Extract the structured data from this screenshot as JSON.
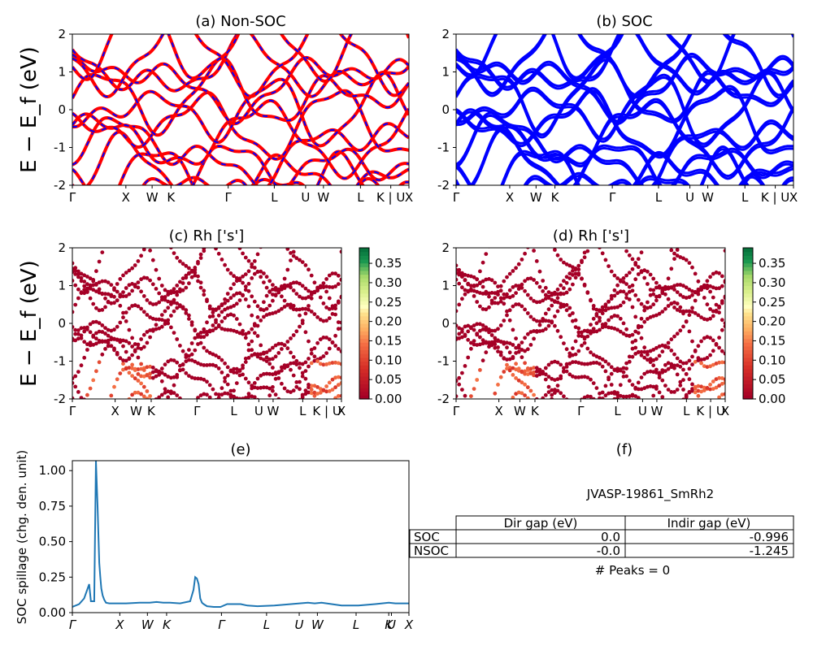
{
  "chart_data": [
    {
      "panel": "a",
      "type": "line",
      "title": "(a) Non-SOC",
      "ylabel": "E − E_f (eV)",
      "ylim": [
        -2,
        2
      ],
      "yticks": [
        -2,
        -1,
        0,
        1,
        2
      ],
      "kpath": [
        {
          "label": "Γ",
          "pos": 0.0
        },
        {
          "label": "X",
          "pos": 0.159
        },
        {
          "label": "W",
          "pos": 0.237
        },
        {
          "label": "K",
          "pos": 0.293
        },
        {
          "label": "Γ",
          "pos": 0.463
        },
        {
          "label": "L",
          "pos": 0.6
        },
        {
          "label": "U",
          "pos": 0.693
        },
        {
          "label": "W",
          "pos": 0.746
        },
        {
          "label": "L",
          "pos": 0.856
        },
        {
          "label": "K | U",
          "pos": 0.946
        },
        {
          "label": "X",
          "pos": 1.0
        }
      ],
      "line_colors": [
        "#ff0000",
        "#0000ff"
      ]
    },
    {
      "panel": "b",
      "type": "line",
      "title": "(b) SOC",
      "ylim": [
        -2,
        2
      ],
      "yticks": [
        -2,
        -1,
        0,
        1,
        2
      ],
      "kpath": [
        {
          "label": "Γ",
          "pos": 0.0
        },
        {
          "label": "X",
          "pos": 0.159
        },
        {
          "label": "W",
          "pos": 0.237
        },
        {
          "label": "K",
          "pos": 0.293
        },
        {
          "label": "Γ",
          "pos": 0.463
        },
        {
          "label": "L",
          "pos": 0.6
        },
        {
          "label": "U",
          "pos": 0.693
        },
        {
          "label": "W",
          "pos": 0.746
        },
        {
          "label": "L",
          "pos": 0.856
        },
        {
          "label": "K | U",
          "pos": 0.946
        },
        {
          "label": "X",
          "pos": 1.0
        }
      ],
      "line_colors": [
        "#0000ff"
      ]
    },
    {
      "panel": "c",
      "type": "scatter",
      "title": "(c)  Rh ['s']",
      "ylabel": "E − E_f (eV)",
      "ylim": [
        -2,
        2
      ],
      "yticks": [
        -2,
        -1,
        0,
        1,
        2
      ],
      "kpath": [
        {
          "label": "Γ",
          "pos": 0.0
        },
        {
          "label": "X",
          "pos": 0.159
        },
        {
          "label": "W",
          "pos": 0.237
        },
        {
          "label": "K",
          "pos": 0.293
        },
        {
          "label": "Γ",
          "pos": 0.463
        },
        {
          "label": "L",
          "pos": 0.6
        },
        {
          "label": "U",
          "pos": 0.693
        },
        {
          "label": "W",
          "pos": 0.746
        },
        {
          "label": "L",
          "pos": 0.856
        },
        {
          "label": "K | U",
          "pos": 0.946
        },
        {
          "label": "X",
          "pos": 1.0
        }
      ],
      "colorbar": {
        "min": 0.0,
        "max": 0.39,
        "ticks": [
          "0.00",
          "0.05",
          "0.10",
          "0.15",
          "0.20",
          "0.25",
          "0.30",
          "0.35"
        ],
        "colormap": "RdYlGn"
      }
    },
    {
      "panel": "d",
      "type": "scatter",
      "title": "(d) Rh ['s']",
      "ylim": [
        -2,
        2
      ],
      "yticks": [
        -2,
        -1,
        0,
        1,
        2
      ],
      "kpath": [
        {
          "label": "Γ",
          "pos": 0.0
        },
        {
          "label": "X",
          "pos": 0.159
        },
        {
          "label": "W",
          "pos": 0.237
        },
        {
          "label": "K",
          "pos": 0.293
        },
        {
          "label": "Γ",
          "pos": 0.463
        },
        {
          "label": "L",
          "pos": 0.6
        },
        {
          "label": "U",
          "pos": 0.693
        },
        {
          "label": "W",
          "pos": 0.746
        },
        {
          "label": "L",
          "pos": 0.856
        },
        {
          "label": "K | U",
          "pos": 0.946
        },
        {
          "label": "X",
          "pos": 1.0
        }
      ],
      "colorbar": {
        "min": 0.0,
        "max": 0.39,
        "ticks": [
          "0.00",
          "0.05",
          "0.10",
          "0.15",
          "0.20",
          "0.25",
          "0.30",
          "0.35"
        ],
        "colormap": "RdYlGn"
      }
    },
    {
      "panel": "e",
      "type": "line",
      "title": "(e)",
      "ylabel": "SOC spillage (chg. den. unit)",
      "ylim": [
        0,
        1.07
      ],
      "yticks": [
        "0.00",
        "0.25",
        "0.50",
        "0.75",
        "1.00"
      ],
      "xticks": [
        {
          "label": "Γ",
          "pos": 0.0
        },
        {
          "label": "X",
          "pos": 0.141
        },
        {
          "label": "W",
          "pos": 0.223
        },
        {
          "label": "K",
          "pos": 0.28
        },
        {
          "label": "Γ",
          "pos": 0.443
        },
        {
          "label": "L",
          "pos": 0.577
        },
        {
          "label": "U",
          "pos": 0.674
        },
        {
          "label": "W",
          "pos": 0.728
        },
        {
          "label": "L",
          "pos": 0.843
        },
        {
          "label": "K",
          "pos": 0.94
        },
        {
          "label": "U",
          "pos": 0.948
        },
        {
          "label": "X",
          "pos": 1.0
        }
      ],
      "line_color": "#1f77b4",
      "x": [
        0.0,
        0.02,
        0.035,
        0.05,
        0.055,
        0.06,
        0.065,
        0.07,
        0.075,
        0.078,
        0.08,
        0.083,
        0.086,
        0.09,
        0.095,
        0.1,
        0.11,
        0.13,
        0.16,
        0.2,
        0.23,
        0.25,
        0.27,
        0.29,
        0.32,
        0.35,
        0.36,
        0.365,
        0.37,
        0.375,
        0.38,
        0.385,
        0.39,
        0.4,
        0.42,
        0.44,
        0.46,
        0.48,
        0.5,
        0.52,
        0.55,
        0.6,
        0.65,
        0.7,
        0.72,
        0.74,
        0.77,
        0.8,
        0.85,
        0.9,
        0.94,
        0.96,
        1.0
      ],
      "values": [
        0.04,
        0.06,
        0.1,
        0.2,
        0.08,
        0.08,
        0.08,
        1.07,
        0.75,
        0.5,
        0.35,
        0.25,
        0.17,
        0.12,
        0.09,
        0.07,
        0.065,
        0.065,
        0.065,
        0.07,
        0.07,
        0.075,
        0.07,
        0.07,
        0.065,
        0.08,
        0.16,
        0.25,
        0.24,
        0.2,
        0.1,
        0.07,
        0.06,
        0.045,
        0.04,
        0.04,
        0.06,
        0.06,
        0.06,
        0.05,
        0.045,
        0.05,
        0.06,
        0.07,
        0.065,
        0.07,
        0.06,
        0.05,
        0.05,
        0.06,
        0.07,
        0.065,
        0.065
      ]
    }
  ],
  "info_panel": {
    "title": "(f)",
    "material": "JVASP-19861_SmRh2",
    "table": {
      "columns": [
        "Dir gap (eV)",
        "Indir gap (eV)"
      ],
      "rows": [
        {
          "label": "SOC",
          "values": [
            "0.0",
            "-0.996"
          ]
        },
        {
          "label": "NSOC",
          "values": [
            "-0.0",
            "-1.245"
          ]
        }
      ]
    },
    "peaks_text": "# Peaks = 0"
  }
}
